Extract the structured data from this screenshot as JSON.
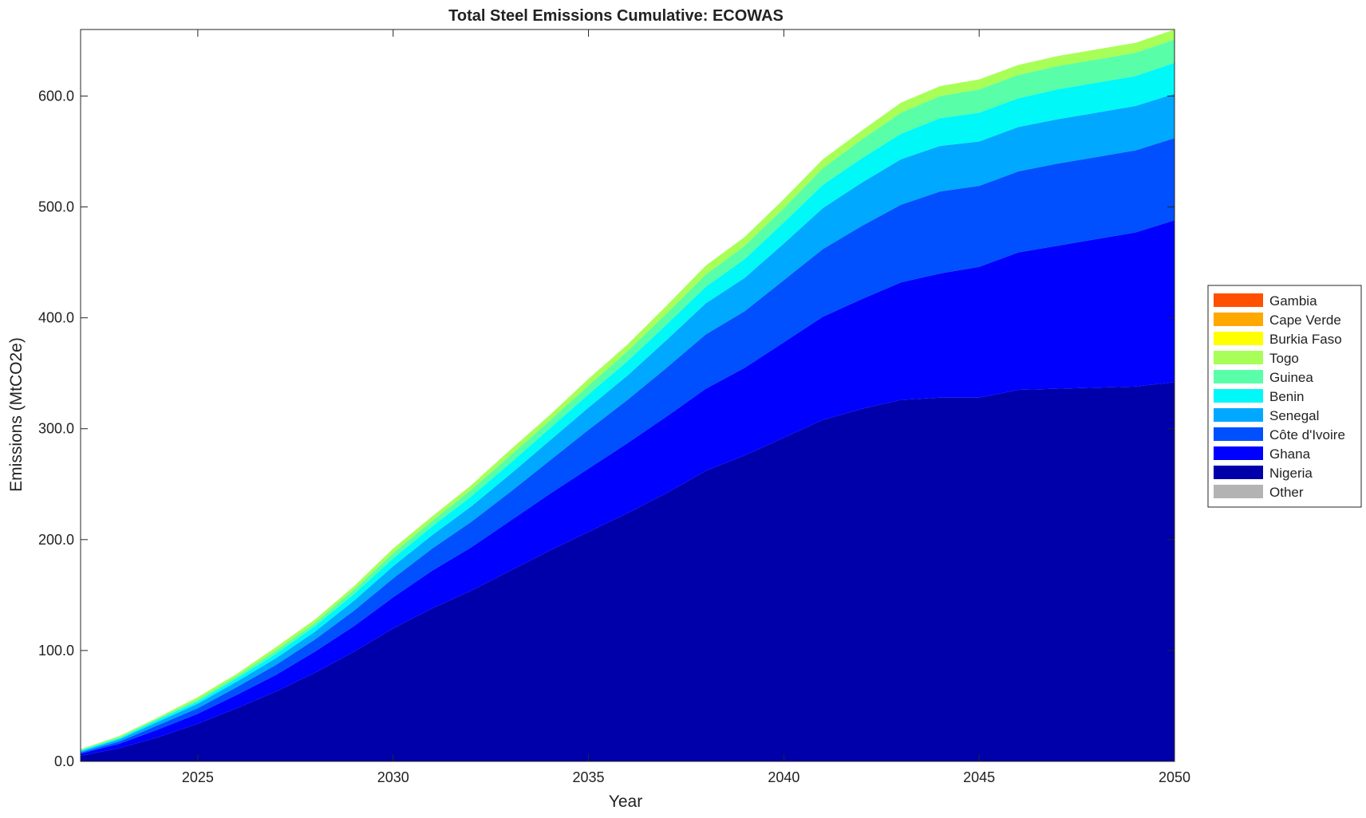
{
  "chart_data": {
    "type": "area",
    "title": "Total Steel Emissions Cumulative: ECOWAS",
    "xlabel": "Year",
    "ylabel": "Emissions (MtCO2e)",
    "xlim": [
      2022,
      2050
    ],
    "ylim": [
      0,
      660
    ],
    "x_ticks": [
      "2025",
      "2030",
      "2035",
      "2040",
      "2045",
      "2050"
    ],
    "y_ticks": [
      "0.0",
      "100.0",
      "200.0",
      "300.0",
      "400.0",
      "500.0",
      "600.0"
    ],
    "grid": false,
    "legend_position": "right",
    "x": [
      2022,
      2023,
      2024,
      2025,
      2026,
      2027,
      2028,
      2029,
      2030,
      2031,
      2032,
      2033,
      2034,
      2035,
      2036,
      2037,
      2038,
      2039,
      2040,
      2041,
      2042,
      2043,
      2044,
      2045,
      2046,
      2047,
      2048,
      2049,
      2050
    ],
    "series": [
      {
        "name": "Nigeria",
        "color": "#0000AA",
        "values": [
          5,
          12,
          22,
          34,
          48,
          63,
          80,
          99,
          120,
          138,
          154,
          172,
          190,
          207,
          224,
          242,
          262,
          276,
          292,
          308,
          318,
          326,
          328,
          328,
          335,
          336,
          337,
          338,
          342
        ]
      },
      {
        "name": "Ghana",
        "color": "#0000FF",
        "values": [
          2,
          4,
          7,
          9,
          12,
          15,
          19,
          23,
          28,
          34,
          39,
          45,
          51,
          57,
          63,
          69,
          74,
          79,
          86,
          93,
          99,
          106,
          112,
          118,
          124,
          129,
          134,
          139,
          146
        ]
      },
      {
        "name": "Côte d'Ivoire",
        "color": "#0050FF",
        "values": [
          1,
          2,
          4,
          5,
          7,
          9,
          11,
          14,
          17,
          20,
          23,
          26,
          30,
          35,
          39,
          44,
          49,
          51,
          56,
          61,
          66,
          70,
          74,
          73,
          73,
          74,
          74,
          74,
          74
        ]
      },
      {
        "name": "Senegal",
        "color": "#00A8FF",
        "values": [
          1,
          2,
          3,
          4,
          5,
          6,
          7,
          9,
          11,
          12,
          14,
          16,
          18,
          20,
          22,
          25,
          28,
          30,
          33,
          37,
          39,
          41,
          41,
          40,
          40,
          40,
          40,
          40,
          40
        ]
      },
      {
        "name": "Benin",
        "color": "#00F8F8",
        "values": [
          1,
          1,
          2,
          2,
          3,
          4,
          5,
          6,
          7,
          8,
          9,
          10,
          11,
          12,
          13,
          14,
          15,
          17,
          19,
          21,
          22,
          23,
          25,
          26,
          26,
          27,
          27,
          27,
          28
        ]
      },
      {
        "name": "Guinea",
        "color": "#58FFA8",
        "values": [
          0.5,
          1,
          1,
          2,
          2,
          3,
          3,
          4,
          5,
          5,
          6,
          7,
          7,
          8,
          9,
          10,
          11,
          12,
          13,
          15,
          17,
          19,
          20,
          21,
          21,
          21,
          21,
          21,
          21
        ]
      },
      {
        "name": "Togo",
        "color": "#A8FF58",
        "values": [
          0.5,
          1,
          1,
          2,
          2,
          3,
          3,
          3,
          4,
          4,
          4,
          5,
          5,
          6,
          6,
          7,
          8,
          8,
          8,
          8,
          8,
          9,
          9,
          9,
          9,
          9,
          9,
          9,
          9
        ]
      },
      {
        "name": "Burkia Faso",
        "color": "#FFFF00",
        "values": [
          0,
          0,
          0,
          0,
          0,
          0,
          0,
          0,
          0,
          0,
          0,
          0,
          0,
          0,
          0,
          0,
          0,
          0,
          0,
          0,
          0,
          0,
          0,
          0,
          0,
          0,
          0,
          0,
          0
        ]
      },
      {
        "name": "Cape Verde",
        "color": "#FFA800",
        "values": [
          0,
          0,
          0,
          0,
          0,
          0,
          0,
          0,
          0,
          0,
          0,
          0,
          0,
          0,
          0,
          0,
          0,
          0,
          0,
          0,
          0,
          0,
          0,
          0,
          0,
          0,
          0,
          0,
          0
        ]
      },
      {
        "name": "Gambia",
        "color": "#FF5000",
        "values": [
          0,
          0,
          0,
          0,
          0,
          0,
          0,
          0,
          0,
          0,
          0,
          0,
          0,
          0,
          0,
          0,
          0,
          0,
          0,
          0,
          0,
          0,
          0,
          0,
          0,
          0,
          0,
          0,
          0
        ]
      },
      {
        "name": "Other",
        "color": "#B3B3B3",
        "values": [
          0,
          0,
          0,
          0,
          0,
          0,
          0,
          0,
          0,
          0,
          0,
          0,
          0,
          0,
          0,
          0,
          0,
          0,
          0,
          0,
          0,
          0,
          0,
          0,
          0,
          0,
          0,
          0,
          0
        ]
      }
    ],
    "legend_order": [
      "Gambia",
      "Cape Verde",
      "Burkia Faso",
      "Togo",
      "Guinea",
      "Benin",
      "Senegal",
      "Côte d'Ivoire",
      "Ghana",
      "Nigeria",
      "Other"
    ]
  }
}
